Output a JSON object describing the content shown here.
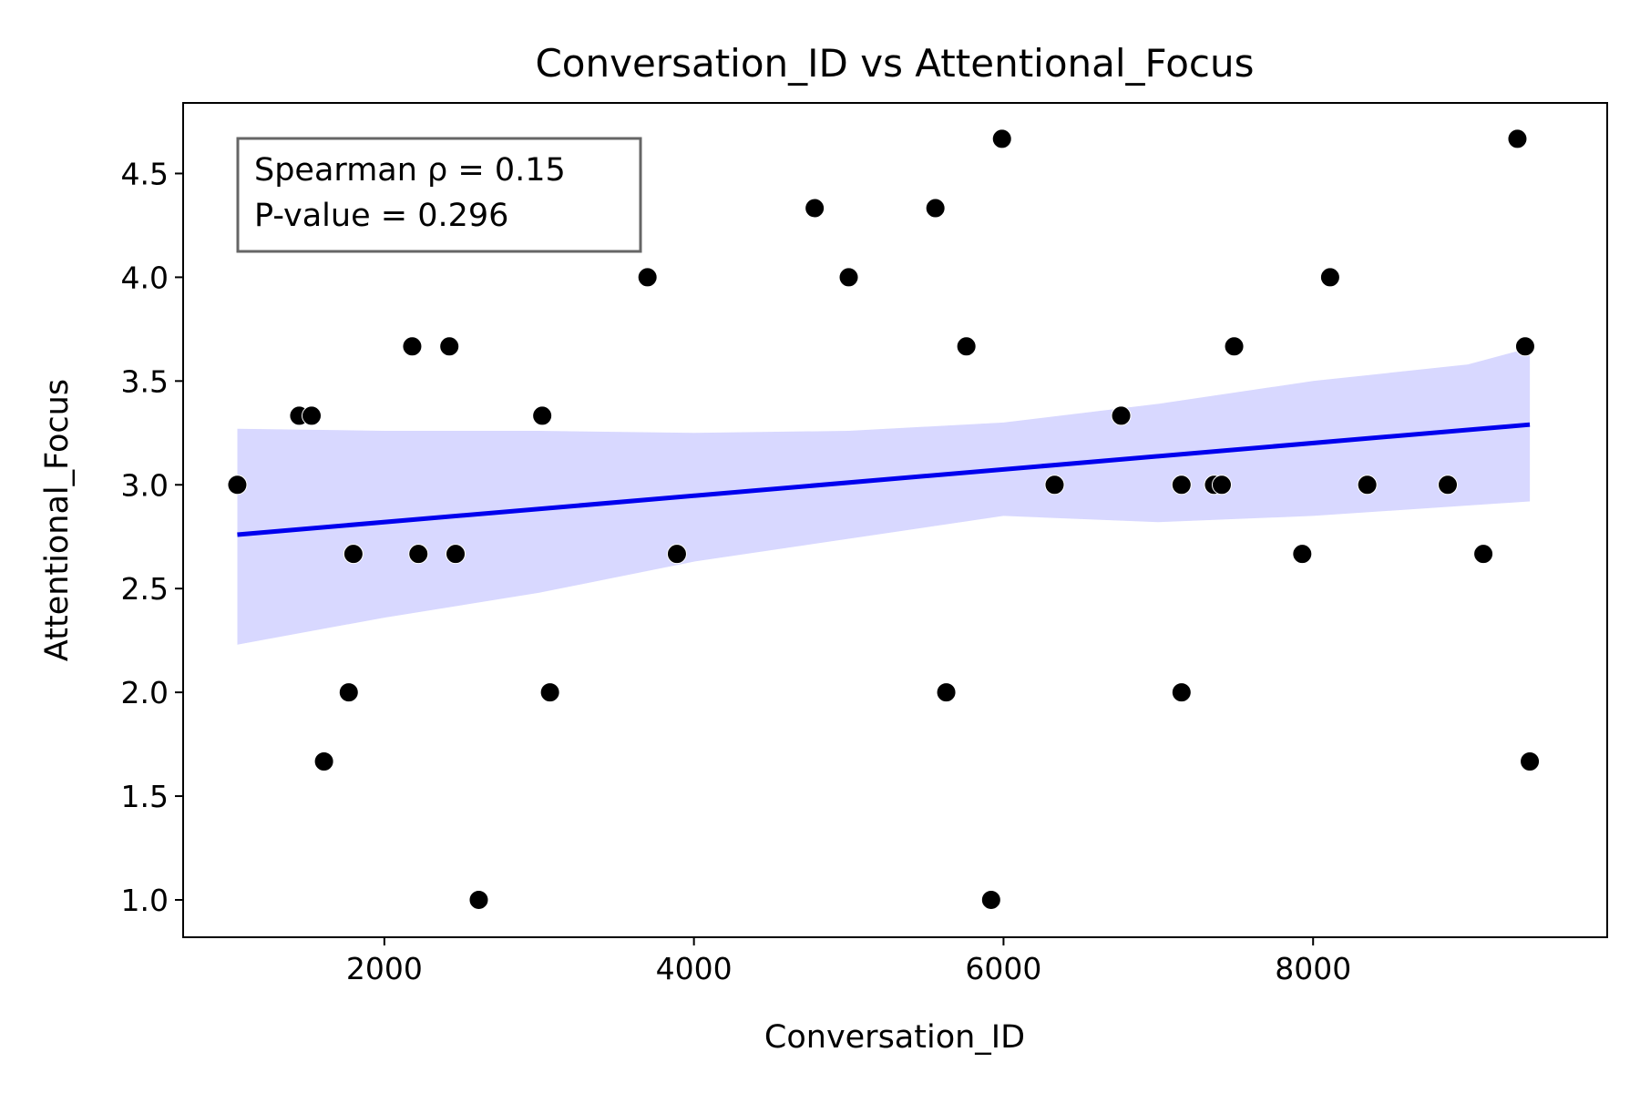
{
  "chart_data": {
    "type": "scatter",
    "title": "Conversation_ID vs Attentional_Focus",
    "xlabel": "Conversation_ID",
    "ylabel": "Attentional_Focus",
    "xlim": [
      700,
      9900
    ],
    "ylim": [
      0.82,
      4.84
    ],
    "x_ticks": [
      2000,
      4000,
      6000,
      8000
    ],
    "y_ticks": [
      1.0,
      1.5,
      2.0,
      2.5,
      3.0,
      3.5,
      4.0,
      4.5
    ],
    "grid": false,
    "annotation": {
      "line1": "Spearman ρ = 0.15",
      "line2": "P-value = 0.296",
      "placement": "top-left"
    },
    "colors": {
      "points": "#000000",
      "regression_line": "#0000ee",
      "confidence_band": "#d8d8ff"
    },
    "points": [
      {
        "x": 1050,
        "y": 3.0
      },
      {
        "x": 1450,
        "y": 3.333
      },
      {
        "x": 1530,
        "y": 3.333
      },
      {
        "x": 1610,
        "y": 1.667
      },
      {
        "x": 1770,
        "y": 2.0
      },
      {
        "x": 1800,
        "y": 2.667
      },
      {
        "x": 2180,
        "y": 3.667
      },
      {
        "x": 2220,
        "y": 2.667
      },
      {
        "x": 2420,
        "y": 3.667
      },
      {
        "x": 2460,
        "y": 2.667
      },
      {
        "x": 2610,
        "y": 1.0
      },
      {
        "x": 3020,
        "y": 3.333
      },
      {
        "x": 3070,
        "y": 2.0
      },
      {
        "x": 3700,
        "y": 4.0
      },
      {
        "x": 3890,
        "y": 2.667
      },
      {
        "x": 4780,
        "y": 4.333
      },
      {
        "x": 5000,
        "y": 4.0
      },
      {
        "x": 5560,
        "y": 4.333
      },
      {
        "x": 5630,
        "y": 2.0
      },
      {
        "x": 5760,
        "y": 3.667
      },
      {
        "x": 5920,
        "y": 1.0
      },
      {
        "x": 5990,
        "y": 4.667
      },
      {
        "x": 6330,
        "y": 3.0
      },
      {
        "x": 6760,
        "y": 3.333
      },
      {
        "x": 7150,
        "y": 3.0
      },
      {
        "x": 7150,
        "y": 2.0
      },
      {
        "x": 7360,
        "y": 3.0
      },
      {
        "x": 7410,
        "y": 3.0
      },
      {
        "x": 7490,
        "y": 3.667
      },
      {
        "x": 7930,
        "y": 2.667
      },
      {
        "x": 8110,
        "y": 4.0
      },
      {
        "x": 8350,
        "y": 3.0
      },
      {
        "x": 8870,
        "y": 3.0
      },
      {
        "x": 9100,
        "y": 2.667
      },
      {
        "x": 9320,
        "y": 4.667
      },
      {
        "x": 9370,
        "y": 3.667
      },
      {
        "x": 9400,
        "y": 1.667
      }
    ],
    "regression": {
      "x": [
        1050,
        9400
      ],
      "y": [
        2.76,
        3.29
      ]
    },
    "confidence_band": {
      "x": [
        1050,
        2000,
        3000,
        4000,
        5000,
        6000,
        7000,
        8000,
        9000,
        9400
      ],
      "lower": [
        2.23,
        2.36,
        2.48,
        2.63,
        2.74,
        2.85,
        2.82,
        2.85,
        2.9,
        2.92
      ],
      "upper": [
        3.27,
        3.26,
        3.26,
        3.25,
        3.26,
        3.3,
        3.39,
        3.5,
        3.58,
        3.66
      ]
    }
  }
}
